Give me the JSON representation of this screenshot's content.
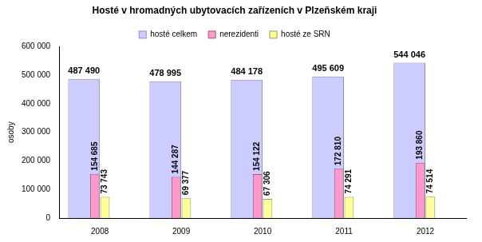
{
  "chart_data": {
    "type": "bar",
    "title": "Hosté v hromadných ubytovacích zařízeních v Plzeňském kraji",
    "y_label": "osoby",
    "categories": [
      "2008",
      "2009",
      "2010",
      "2011",
      "2012"
    ],
    "series": [
      {
        "name": "hosté celkem",
        "color": "#ccccff",
        "values": [
          487490,
          478995,
          484178,
          495609,
          544046
        ],
        "value_labels": [
          "487 490",
          "478 995",
          "484 178",
          "495 609",
          "544 046"
        ]
      },
      {
        "name": "nerezidenti",
        "color": "#ff99cc",
        "values": [
          154685,
          144287,
          154122,
          172810,
          193860
        ],
        "value_labels": [
          "154 685",
          "144 287",
          "154 122",
          "172 810",
          "193 860"
        ]
      },
      {
        "name": "hosté ze SRN",
        "color": "#ffff99",
        "values": [
          73743,
          69377,
          67306,
          74291,
          74514
        ],
        "value_labels": [
          "73 743",
          "69 377",
          "67 306",
          "74 291",
          "74 514"
        ]
      }
    ],
    "ylim": [
      0,
      600000
    ],
    "yticks": [
      0,
      {
        "value": 100000,
        "label": "100 000"
      },
      {
        "value": 200000,
        "label": "200 000"
      },
      {
        "value": 300000,
        "label": "300 000"
      },
      {
        "value": 400000,
        "label": "400 000"
      },
      {
        "value": 500000,
        "label": "500 000"
      },
      {
        "value": 600000,
        "label": "600 000"
      }
    ],
    "grid": false,
    "legend": "top",
    "data_labels": true
  }
}
